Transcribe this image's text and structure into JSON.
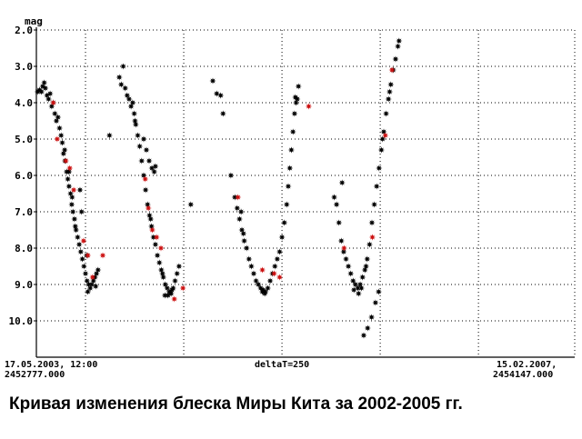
{
  "caption": "Кривая изменения блеска  Миры Кита за 2002-2005 гг.",
  "colors": {
    "normal": "#000000",
    "highlight": "#cc1111"
  },
  "chart_data": {
    "type": "scatter",
    "title": "",
    "ylabel": "mag",
    "y_inverted": true,
    "ylim": [
      2.0,
      11.0
    ],
    "xlim": [
      2452777.0,
      2454147.0
    ],
    "y_ticks": [
      "2.0",
      "3.0",
      "4.0",
      "5.0",
      "6.0",
      "7.0",
      "8.0",
      "9.0",
      "10.0"
    ],
    "x_labels": {
      "left_date": "17.05.2003, 12:00",
      "left_jd": "2452777.000",
      "center": "deltaT=250",
      "right_date": "15.02.2007,",
      "right_jd": "2454147.000"
    },
    "grid": true,
    "series": [
      {
        "marker": "black-star",
        "points": [
          [
            2452780,
            3.7
          ],
          [
            2452785,
            3.65
          ],
          [
            2452790,
            3.7
          ],
          [
            2452793,
            3.55
          ],
          [
            2452797,
            3.45
          ],
          [
            2452800,
            3.6
          ],
          [
            2452804,
            3.8
          ],
          [
            2452808,
            3.9
          ],
          [
            2452812,
            3.75
          ],
          [
            2452816,
            4.1
          ],
          [
            2452820,
            4.0
          ],
          [
            2452824,
            4.3
          ],
          [
            2452828,
            4.5
          ],
          [
            2452832,
            4.4
          ],
          [
            2452836,
            4.7
          ],
          [
            2452840,
            4.9
          ],
          [
            2452843,
            5.1
          ],
          [
            2452846,
            5.4
          ],
          [
            2452850,
            5.6
          ],
          [
            2452854,
            5.9
          ],
          [
            2452857,
            6.1
          ],
          [
            2452860,
            6.3
          ],
          [
            2452864,
            6.5
          ],
          [
            2452867,
            6.8
          ],
          [
            2452870,
            7.0
          ],
          [
            2452874,
            7.2
          ],
          [
            2452878,
            7.5
          ],
          [
            2452882,
            7.7
          ],
          [
            2452886,
            7.9
          ],
          [
            2452890,
            8.1
          ],
          [
            2452894,
            8.3
          ],
          [
            2452898,
            8.5
          ],
          [
            2452902,
            8.7
          ],
          [
            2452906,
            8.9
          ],
          [
            2452910,
            9.0
          ],
          [
            2452914,
            9.1
          ],
          [
            2452918,
            9.0
          ],
          [
            2452922,
            8.9
          ],
          [
            2452926,
            8.8
          ],
          [
            2452930,
            8.7
          ],
          [
            2452934,
            8.6
          ],
          [
            2452888,
            6.4
          ],
          [
            2452892,
            7.0
          ],
          [
            2452905,
            8.2
          ],
          [
            2452860,
            5.9
          ],
          [
            2452868,
            6.6
          ],
          [
            2452876,
            7.4
          ],
          [
            2452849,
            5.3
          ],
          [
            2452908,
            9.2
          ],
          [
            2452928,
            9.05
          ],
          [
            2452963,
            4.9
          ],
          [
            2452988,
            3.3
          ],
          [
            2452993,
            3.5
          ],
          [
            2452998,
            3.0
          ],
          [
            2453003,
            3.6
          ],
          [
            2453008,
            3.8
          ],
          [
            2453013,
            3.9
          ],
          [
            2453018,
            4.1
          ],
          [
            2453022,
            4.0
          ],
          [
            2453026,
            4.3
          ],
          [
            2453030,
            4.6
          ],
          [
            2453035,
            4.9
          ],
          [
            2453040,
            5.2
          ],
          [
            2453045,
            5.6
          ],
          [
            2453050,
            6.0
          ],
          [
            2453055,
            6.4
          ],
          [
            2453060,
            6.8
          ],
          [
            2453065,
            7.1
          ],
          [
            2453070,
            7.4
          ],
          [
            2453075,
            7.7
          ],
          [
            2453080,
            7.9
          ],
          [
            2453085,
            8.2
          ],
          [
            2453090,
            8.4
          ],
          [
            2453095,
            8.6
          ],
          [
            2453100,
            8.8
          ],
          [
            2453105,
            9.0
          ],
          [
            2453110,
            9.1
          ],
          [
            2453115,
            9.2
          ],
          [
            2453120,
            9.25
          ],
          [
            2453125,
            9.1
          ],
          [
            2453130,
            8.9
          ],
          [
            2453135,
            8.7
          ],
          [
            2453140,
            8.5
          ],
          [
            2453050,
            5.0
          ],
          [
            2453057,
            5.3
          ],
          [
            2453064,
            5.6
          ],
          [
            2453071,
            5.8
          ],
          [
            2453077,
            5.9
          ],
          [
            2453080,
            5.75
          ],
          [
            2453028,
            4.5
          ],
          [
            2453068,
            7.2
          ],
          [
            2453098,
            8.7
          ],
          [
            2453104,
            9.3
          ],
          [
            2453112,
            9.3
          ],
          [
            2453122,
            9.15
          ],
          [
            2453170,
            6.8
          ],
          [
            2453226,
            3.4
          ],
          [
            2453236,
            3.75
          ],
          [
            2453246,
            3.8
          ],
          [
            2453252,
            4.3
          ],
          [
            2453272,
            6.0
          ],
          [
            2453282,
            6.6
          ],
          [
            2453288,
            6.9
          ],
          [
            2453294,
            7.2
          ],
          [
            2453300,
            7.5
          ],
          [
            2453306,
            7.8
          ],
          [
            2453312,
            8.0
          ],
          [
            2453318,
            8.3
          ],
          [
            2453324,
            8.5
          ],
          [
            2453330,
            8.7
          ],
          [
            2453336,
            8.9
          ],
          [
            2453342,
            9.0
          ],
          [
            2453348,
            9.1
          ],
          [
            2453354,
            9.15
          ],
          [
            2453360,
            9.2
          ],
          [
            2453366,
            9.1
          ],
          [
            2453372,
            8.9
          ],
          [
            2453378,
            8.7
          ],
          [
            2453384,
            8.5
          ],
          [
            2453390,
            8.3
          ],
          [
            2453396,
            8.1
          ],
          [
            2453402,
            7.7
          ],
          [
            2453408,
            7.3
          ],
          [
            2453414,
            6.8
          ],
          [
            2453418,
            6.3
          ],
          [
            2453422,
            5.8
          ],
          [
            2453426,
            5.3
          ],
          [
            2453430,
            4.8
          ],
          [
            2453434,
            4.3
          ],
          [
            2453438,
            4.0
          ],
          [
            2453441,
            3.9
          ],
          [
            2453444,
            3.55
          ],
          [
            2453298,
            7.0
          ],
          [
            2453304,
            7.6
          ],
          [
            2453352,
            9.2
          ],
          [
            2453358,
            9.25
          ],
          [
            2453436,
            3.85
          ],
          [
            2453535,
            6.6
          ],
          [
            2453541,
            6.8
          ],
          [
            2453547,
            7.3
          ],
          [
            2453553,
            7.8
          ],
          [
            2453559,
            8.1
          ],
          [
            2453565,
            8.3
          ],
          [
            2453571,
            8.5
          ],
          [
            2453577,
            8.7
          ],
          [
            2453583,
            8.9
          ],
          [
            2453589,
            9.0
          ],
          [
            2453595,
            9.1
          ],
          [
            2453601,
            9.0
          ],
          [
            2453607,
            8.8
          ],
          [
            2453613,
            8.6
          ],
          [
            2453619,
            8.3
          ],
          [
            2453625,
            7.9
          ],
          [
            2453631,
            7.3
          ],
          [
            2453637,
            6.8
          ],
          [
            2453643,
            6.3
          ],
          [
            2453649,
            5.8
          ],
          [
            2453655,
            5.3
          ],
          [
            2453661,
            4.8
          ],
          [
            2453667,
            4.3
          ],
          [
            2453673,
            3.9
          ],
          [
            2453679,
            3.5
          ],
          [
            2453685,
            3.1
          ],
          [
            2453691,
            2.8
          ],
          [
            2453697,
            2.45
          ],
          [
            2453700,
            2.3
          ],
          [
            2453555,
            6.2
          ],
          [
            2453610,
            10.4
          ],
          [
            2453620,
            10.2
          ],
          [
            2453630,
            9.9
          ],
          [
            2453640,
            9.5
          ],
          [
            2453648,
            9.2
          ],
          [
            2453585,
            9.15
          ],
          [
            2453597,
            9.25
          ],
          [
            2453604,
            9.1
          ],
          [
            2453616,
            8.5
          ],
          [
            2453658,
            5.0
          ],
          [
            2453676,
            3.7
          ]
        ]
      },
      {
        "marker": "red-star",
        "points": [
          [
            2452820,
            4.0
          ],
          [
            2452830,
            5.0
          ],
          [
            2452852,
            5.6
          ],
          [
            2452862,
            5.8
          ],
          [
            2452872,
            6.4
          ],
          [
            2452897,
            7.8
          ],
          [
            2452908,
            8.2
          ],
          [
            2452920,
            8.8
          ],
          [
            2452946,
            8.2
          ],
          [
            2453054,
            6.1
          ],
          [
            2453062,
            6.9
          ],
          [
            2453072,
            7.5
          ],
          [
            2453083,
            7.7
          ],
          [
            2453094,
            8.0
          ],
          [
            2453128,
            9.4
          ],
          [
            2453150,
            9.1
          ],
          [
            2453290,
            6.6
          ],
          [
            2453352,
            8.6
          ],
          [
            2453382,
            8.7
          ],
          [
            2453396,
            8.8
          ],
          [
            2453470,
            4.1
          ],
          [
            2453560,
            8.0
          ],
          [
            2453632,
            7.7
          ],
          [
            2453665,
            4.9
          ],
          [
            2453682,
            3.1
          ]
        ]
      }
    ]
  }
}
